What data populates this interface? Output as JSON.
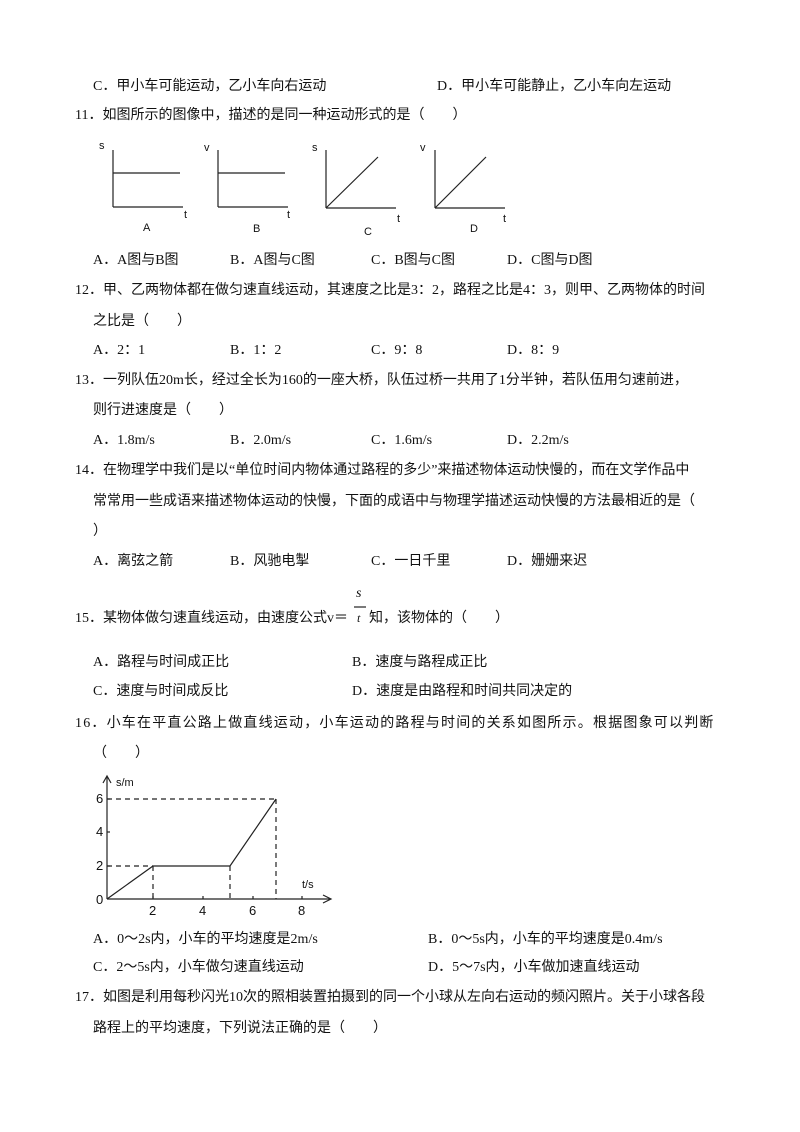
{
  "q10": {
    "options": [
      "C．甲小车可能运动，乙小车向右运动",
      "D．甲小车可能静止，乙小车向左运动"
    ]
  },
  "q11": {
    "stem": "11．如图所示的图像中，描述的是同一种运动形式的是（　　）",
    "figures": [
      {
        "y": "s",
        "x": "t",
        "label": "A"
      },
      {
        "y": "v",
        "x": "t",
        "label": "B"
      },
      {
        "y": "s",
        "x": "t",
        "label": "C"
      },
      {
        "y": "v",
        "x": "t",
        "label": "D"
      }
    ],
    "options": [
      "A．A图与B图",
      "B．A图与C图",
      "C．B图与C图",
      "D．C图与D图"
    ]
  },
  "q12": {
    "stem": [
      "12．甲、乙两物体都在做匀速直线运动，其速度之比是3：2，路程之比是4：3，则甲、乙两物体的时间",
      "之比是（　　）"
    ],
    "options": [
      "A．2：1",
      "B．1：2",
      "C．9：8",
      "D．8：9"
    ]
  },
  "q13": {
    "stem": [
      "13．一列队伍20m长，经过全长为160的一座大桥，队伍过桥一共用了1分半钟，若队伍用匀速前进，",
      "则行进速度是（　　）"
    ],
    "options": [
      "A．1.8m/s",
      "B．2.0m/s",
      "C．1.6m/s",
      "D．2.2m/s"
    ]
  },
  "q14": {
    "stem": [
      "14．在物理学中我们是以“单位时间内物体通过路程的多少”来描述物体运动快慢的，而在文学作品中",
      "常常用一些成语来描述物体运动的快慢，下面的成语中与物理学描述运动快慢的方法最相近的是（",
      "）"
    ],
    "options": [
      "A．离弦之箭",
      "B．风驰电掣",
      "C．一日千里",
      "D．姗姗来迟"
    ]
  },
  "q15": {
    "stem_before": "15．某物体做匀速直线运动，由速度公式v＝",
    "numerator": "s",
    "denominator": "t",
    "stem_after": "知，该物体的（　　）",
    "options": [
      "A．路程与时间成正比",
      "B．速度与路程成正比",
      "C．速度与时间成反比",
      "D．速度是由路程和时间共同决定的"
    ]
  },
  "q16": {
    "stem": [
      "16．小车在平直公路上做直线运动，小车运动的路程与时间的关系如图所示。根据图象可以判断",
      "（　　）"
    ],
    "graph": {
      "y_label": "s/m",
      "x_label": "t/s",
      "origin": "0",
      "xticks": [
        "2",
        "4",
        "6",
        "8"
      ],
      "yticks": [
        "2",
        "4",
        "6"
      ]
    },
    "options": [
      "A．0～2s内，小车的平均速度是2m/s",
      "B．0～5s内，小车的平均速度是0.4m/s",
      "C．2～5s内，小车做匀速直线运动",
      "D．5～7s内，小车做加速直线运动"
    ]
  },
  "q17": {
    "stem": [
      "17．如图是利用每秒闪光10次的照相装置拍摄到的同一个小球从左向右运动的频闪照片。关于小球各段",
      "路程上的平均速度，下列说法正确的是（　　）"
    ]
  }
}
